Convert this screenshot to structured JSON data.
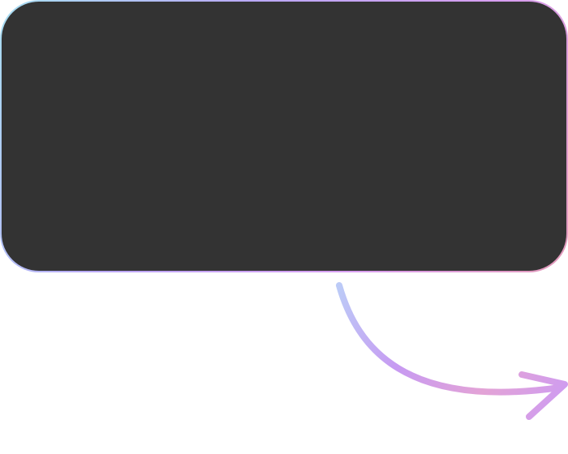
{
  "card": {
    "background": "#333333",
    "border_gradient": [
      "#a8dff2",
      "#b9a8f5",
      "#d79ef0",
      "#e39ab8"
    ]
  },
  "arrow": {
    "icon": "curved-arrow-right-icon",
    "gradient": [
      "#bccbf7",
      "#c79af2",
      "#e3a3d6",
      "#cf9cf0"
    ]
  }
}
